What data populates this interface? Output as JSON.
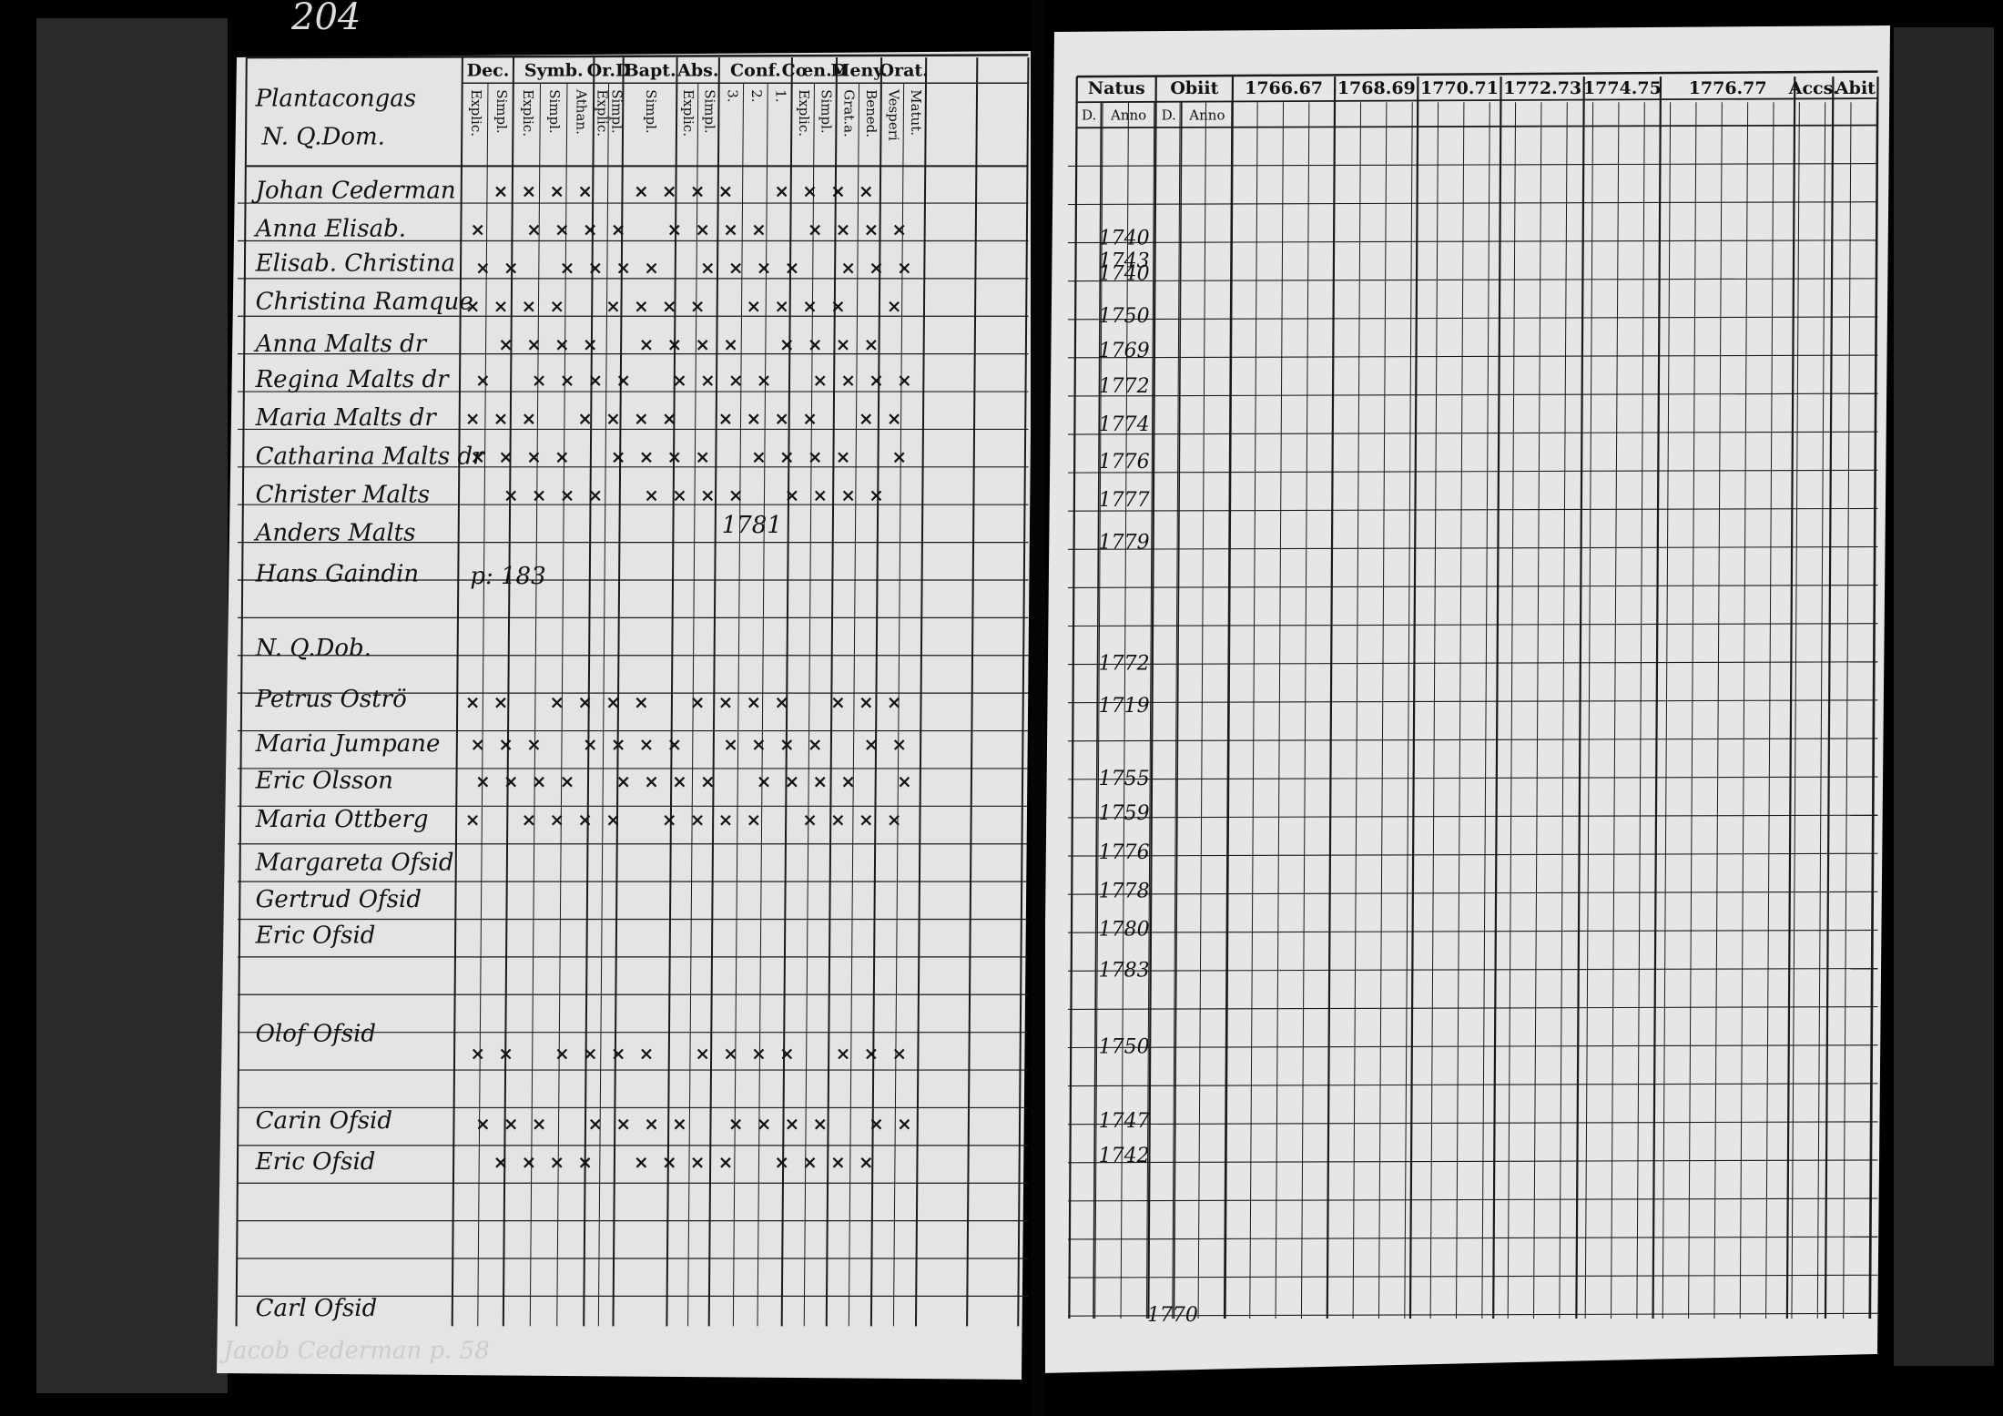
{
  "page_number": "204",
  "left_page": {
    "parish": "Plantacongas",
    "household": "N. Q.Dom.",
    "columns": [
      {
        "label": "Dec.",
        "sub": [
          "Explic.",
          "Simpl."
        ]
      },
      {
        "label": "Symb.",
        "sub": [
          "Explic.",
          "Simpl.",
          "Athan."
        ]
      },
      {
        "label": "Or.D",
        "sub": [
          "Explic.",
          "Simpl."
        ]
      },
      {
        "label": "Bapt.",
        "sub": [
          "Simpl."
        ]
      },
      {
        "label": "Abs.",
        "sub": [
          "Explic.",
          "Simpl."
        ]
      },
      {
        "label": "Conf.",
        "sub": [
          "3.",
          "2.",
          "1."
        ]
      },
      {
        "label": "Cœn.D",
        "sub": [
          "Explic.",
          "Simpl."
        ]
      },
      {
        "label": "Meny.",
        "sub": [
          "Grat.a.",
          "Bened."
        ]
      },
      {
        "label": "Orat.",
        "sub": [
          "Vesperi",
          "Matut."
        ]
      }
    ],
    "names": [
      "Johan Cederman",
      "Anna Elisab.",
      "Elisab. Christina",
      "Christina Ramque",
      "Anna Malts dr",
      "Regina Malts dr",
      "Maria Malts dr",
      "Catharina Malts dr",
      "Christer Malts",
      "Anders Malts",
      "Hans Gaindin",
      "N. Q.Dob.",
      "Petrus Oströ",
      "Maria Jumpane",
      "Eric Olsson",
      "Maria Ottberg",
      "Margareta Ofsid",
      "Gertrud Ofsid",
      "Eric Ofsid",
      "Olof Ofsid",
      "Carin Ofsid",
      "Eric Ofsid",
      "Carl Ofsid"
    ],
    "notes": [
      "p: 183",
      "1781"
    ],
    "footer": "Jacob Cederman p. 58"
  },
  "right_page": {
    "columns": [
      "Natus",
      "Obiit",
      "1766.67",
      "1768.69",
      "1770.71",
      "1772.73",
      "1774.75",
      "1776.77",
      "Accs.",
      "Abit"
    ],
    "subcolumns": [
      "D.",
      "Anno",
      "D.",
      "Anno"
    ],
    "years": [
      "1740",
      "1743",
      "1740",
      "1750",
      "1769",
      "1772",
      "1774",
      "1776",
      "1777",
      "1779",
      "1772",
      "1719",
      "1755",
      "1759",
      "1776",
      "1778",
      "1780",
      "1783",
      "1750",
      "1747",
      "1742",
      "1770"
    ]
  }
}
